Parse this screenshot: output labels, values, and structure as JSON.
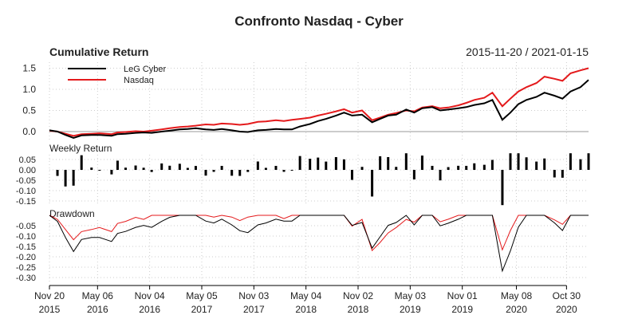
{
  "chart_data": {
    "type": "line",
    "title": "Confronto Nasdaq - Cyber",
    "date_range": "2015-11-20 / 2021-01-15",
    "panels": {
      "cumulative": {
        "title": "Cumulative Return",
        "yticks": [
          "1.5",
          "1.0",
          "0.5",
          "0.0"
        ],
        "ylim": [
          -0.2,
          1.52
        ]
      },
      "weekly": {
        "title": "Weekly Return",
        "yticks": [
          "0.05",
          "0.00",
          "-0.05",
          "-0.10",
          "-0.15"
        ],
        "ylim": [
          -0.17,
          0.08
        ]
      },
      "drawdown": {
        "title": "Drawdown",
        "yticks": [
          "-0.05",
          "-0.10",
          "-0.15",
          "-0.20",
          "-0.25",
          "-0.30"
        ],
        "ylim": [
          -0.33,
          0.01
        ]
      }
    },
    "legend": {
      "placement": "top-left",
      "entries": [
        "LeG Cyber",
        "Nasdaq"
      ]
    },
    "x_ticks": [
      {
        "date": "2015-11-20",
        "l1": "Nov 20",
        "l2": "2015"
      },
      {
        "date": "2016-05-06",
        "l1": "May 06",
        "l2": "2016"
      },
      {
        "date": "2016-11-04",
        "l1": "Nov 04",
        "l2": "2016"
      },
      {
        "date": "2017-05-05",
        "l1": "May 05",
        "l2": "2017"
      },
      {
        "date": "2017-11-03",
        "l1": "Nov 03",
        "l2": "2017"
      },
      {
        "date": "2018-05-04",
        "l1": "May 04",
        "l2": "2018"
      },
      {
        "date": "2018-11-02",
        "l1": "Nov 02",
        "l2": "2018"
      },
      {
        "date": "2019-05-03",
        "l1": "May 03",
        "l2": "2019"
      },
      {
        "date": "2019-11-01",
        "l1": "Nov 01",
        "l2": "2019"
      },
      {
        "date": "2020-05-08",
        "l1": "May 08",
        "l2": "2020"
      },
      {
        "date": "2020-10-30",
        "l1": "Oct 30",
        "l2": "2020"
      }
    ],
    "x_range": [
      "2015-11-20",
      "2021-01-15"
    ],
    "grid": true,
    "colors": {
      "LeG Cyber": "#000000",
      "Nasdaq": "#e41a1c"
    },
    "x": [
      "2015-11-20",
      "2015-12-18",
      "2016-01-15",
      "2016-02-12",
      "2016-03-11",
      "2016-04-15",
      "2016-05-13",
      "2016-06-24",
      "2016-07-15",
      "2016-08-12",
      "2016-09-16",
      "2016-10-14",
      "2016-11-11",
      "2016-12-16",
      "2017-01-13",
      "2017-02-17",
      "2017-03-17",
      "2017-04-14",
      "2017-05-19",
      "2017-06-16",
      "2017-07-14",
      "2017-08-18",
      "2017-09-15",
      "2017-10-13",
      "2017-11-17",
      "2017-12-15",
      "2018-01-19",
      "2018-02-16",
      "2018-03-16",
      "2018-04-13",
      "2018-05-18",
      "2018-06-15",
      "2018-07-13",
      "2018-08-17",
      "2018-09-14",
      "2018-10-12",
      "2018-11-16",
      "2018-12-21",
      "2019-01-18",
      "2019-02-15",
      "2019-03-15",
      "2019-04-19",
      "2019-05-17",
      "2019-06-14",
      "2019-07-19",
      "2019-08-16",
      "2019-09-13",
      "2019-10-18",
      "2019-11-15",
      "2019-12-13",
      "2020-01-17",
      "2020-02-14",
      "2020-03-20",
      "2020-04-17",
      "2020-05-15",
      "2020-06-12",
      "2020-07-17",
      "2020-08-14",
      "2020-09-18",
      "2020-10-16",
      "2020-11-13",
      "2020-12-18",
      "2021-01-15"
    ],
    "series": [
      {
        "name": "LeG Cyber",
        "values": [
          0.03,
          0.0,
          -0.08,
          -0.15,
          -0.09,
          -0.08,
          -0.08,
          -0.1,
          -0.06,
          -0.05,
          -0.03,
          -0.02,
          -0.03,
          0.0,
          0.02,
          0.05,
          0.06,
          0.08,
          0.05,
          0.04,
          0.06,
          0.03,
          0.0,
          -0.01,
          0.03,
          0.04,
          0.06,
          0.05,
          0.05,
          0.12,
          0.18,
          0.25,
          0.3,
          0.38,
          0.45,
          0.38,
          0.4,
          0.22,
          0.3,
          0.38,
          0.4,
          0.52,
          0.45,
          0.55,
          0.58,
          0.5,
          0.52,
          0.55,
          0.58,
          0.63,
          0.67,
          0.75,
          0.28,
          0.45,
          0.65,
          0.75,
          0.82,
          0.92,
          0.85,
          0.78,
          0.95,
          1.05,
          1.22
        ]
      },
      {
        "name": "Nasdaq",
        "values": [
          0.02,
          0.0,
          -0.05,
          -0.1,
          -0.06,
          -0.05,
          -0.04,
          -0.06,
          -0.02,
          -0.01,
          0.01,
          0.0,
          0.02,
          0.05,
          0.08,
          0.11,
          0.12,
          0.14,
          0.17,
          0.16,
          0.19,
          0.18,
          0.16,
          0.18,
          0.23,
          0.24,
          0.27,
          0.25,
          0.28,
          0.3,
          0.33,
          0.38,
          0.42,
          0.48,
          0.53,
          0.45,
          0.5,
          0.27,
          0.33,
          0.4,
          0.44,
          0.5,
          0.48,
          0.57,
          0.6,
          0.55,
          0.57,
          0.62,
          0.68,
          0.75,
          0.8,
          0.92,
          0.6,
          0.78,
          0.95,
          1.05,
          1.15,
          1.3,
          1.25,
          1.2,
          1.38,
          1.45,
          1.5
        ]
      }
    ]
  }
}
